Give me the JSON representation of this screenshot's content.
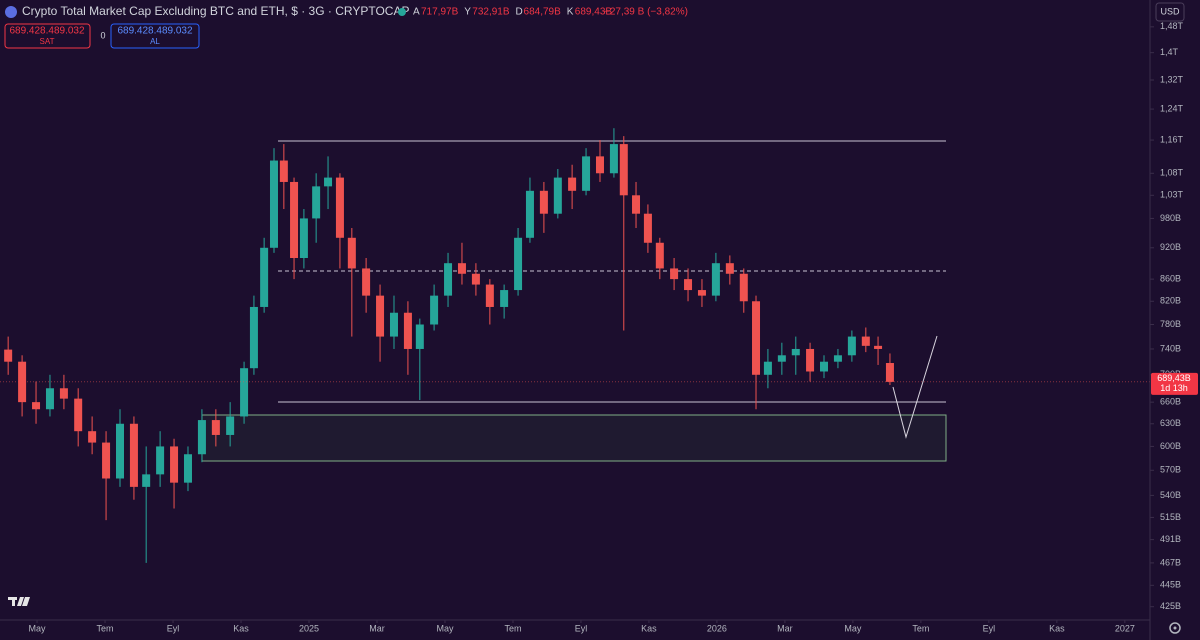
{
  "header": {
    "title": "Crypto Total Market Cap Excluding BTC and ETH, $ · 3G · CRYPTOCAP",
    "ohlc": [
      {
        "key": "A",
        "value": "717,97B"
      },
      {
        "key": "Y",
        "value": "732,91B"
      },
      {
        "key": "D",
        "value": "684,79B"
      },
      {
        "key": "K",
        "value": "689,43B"
      }
    ],
    "change": "−27,39 B (−3,82%)",
    "sell_price": "689.428.489.032",
    "sell_label": "SAT",
    "spread": "0",
    "buy_price": "689.428.489.032",
    "buy_label": "AL",
    "currency": "USD",
    "countdown": "1d 13h"
  },
  "chart_data": {
    "type": "candlestick",
    "log": true,
    "grid": false,
    "up_color": "#26a69a",
    "down_color": "#ef5350",
    "xlim": [
      -1.09,
      32.74
    ],
    "xticks": [
      {
        "value": 0,
        "label": "May"
      },
      {
        "value": 2,
        "label": "Tem"
      },
      {
        "value": 4,
        "label": "Eyl"
      },
      {
        "value": 6,
        "label": "Kas"
      },
      {
        "value": 8,
        "label": "2025"
      },
      {
        "value": 10,
        "label": "Mar"
      },
      {
        "value": 12,
        "label": "May"
      },
      {
        "value": 14,
        "label": "Tem"
      },
      {
        "value": 16,
        "label": "Eyl"
      },
      {
        "value": 18,
        "label": "Kas"
      },
      {
        "value": 20,
        "label": "2026"
      },
      {
        "value": 22,
        "label": "Mar"
      },
      {
        "value": 24,
        "label": "May"
      },
      {
        "value": 26,
        "label": "Tem"
      },
      {
        "value": 28,
        "label": "Eyl"
      },
      {
        "value": 30,
        "label": "Kas"
      },
      {
        "value": 32,
        "label": "2027"
      }
    ],
    "ylim": [
      413,
      1568
    ],
    "yticks": [
      {
        "value": 425,
        "label": "425B"
      },
      {
        "value": 445,
        "label": "445B"
      },
      {
        "value": 467,
        "label": "467B"
      },
      {
        "value": 491,
        "label": "491B"
      },
      {
        "value": 515,
        "label": "515B"
      },
      {
        "value": 540,
        "label": "540B"
      },
      {
        "value": 570,
        "label": "570B"
      },
      {
        "value": 600,
        "label": "600B"
      },
      {
        "value": 630,
        "label": "630B"
      },
      {
        "value": 660,
        "label": "660B"
      },
      {
        "value": 700,
        "label": "700B"
      },
      {
        "value": 740,
        "label": "740B"
      },
      {
        "value": 780,
        "label": "780B"
      },
      {
        "value": 820,
        "label": "820B"
      },
      {
        "value": 860,
        "label": "860B"
      },
      {
        "value": 920,
        "label": "920B"
      },
      {
        "value": 980,
        "label": "980B"
      },
      {
        "value": 1030,
        "label": "1,03T"
      },
      {
        "value": 1080,
        "label": "1,08T"
      },
      {
        "value": 1160,
        "label": "1,16T"
      },
      {
        "value": 1240,
        "label": "1,24T"
      },
      {
        "value": 1320,
        "label": "1,32T"
      },
      {
        "value": 1400,
        "label": "1,4T"
      },
      {
        "value": 1480,
        "label": "1,48T"
      }
    ],
    "price_line": {
      "value": 689.43,
      "label": "689,43B"
    },
    "candles": {
      "x": [
        -0.85,
        -0.44,
        -0.03,
        0.38,
        0.79,
        1.21,
        1.62,
        2.03,
        2.44,
        2.85,
        3.21,
        3.62,
        4.03,
        4.44,
        4.85,
        5.26,
        5.68,
        6.09,
        6.38,
        6.68,
        6.97,
        7.26,
        7.56,
        7.85,
        8.21,
        8.56,
        8.91,
        9.26,
        9.68,
        10.09,
        10.5,
        10.91,
        11.26,
        11.68,
        12.09,
        12.5,
        12.91,
        13.32,
        13.74,
        14.15,
        14.5,
        14.91,
        15.32,
        15.74,
        16.15,
        16.56,
        16.97,
        17.26,
        17.62,
        17.97,
        18.32,
        18.74,
        19.15,
        19.56,
        19.97,
        20.38,
        20.79,
        21.15,
        21.5,
        21.91,
        22.32,
        22.74,
        23.15,
        23.56,
        23.97,
        24.38,
        24.74,
        25.09
      ],
      "open": [
        739,
        720,
        660,
        650,
        680,
        665,
        620,
        605,
        560,
        630,
        550,
        565,
        600,
        555,
        590,
        635,
        615,
        640,
        710,
        810,
        920,
        1110,
        1060,
        900,
        980,
        1050,
        1070,
        940,
        880,
        830,
        760,
        800,
        740,
        780,
        830,
        890,
        870,
        850,
        810,
        840,
        940,
        1040,
        990,
        1070,
        1040,
        1120,
        1080,
        1150,
        1030,
        990,
        930,
        880,
        860,
        840,
        830,
        890,
        870,
        820,
        700,
        720,
        730,
        740,
        705,
        720,
        730,
        760,
        745,
        717.97
      ],
      "high": [
        760,
        730,
        690,
        700,
        700,
        680,
        640,
        620,
        650,
        640,
        600,
        620,
        610,
        600,
        650,
        650,
        660,
        720,
        830,
        940,
        1140,
        1150,
        1070,
        1000,
        1080,
        1120,
        1080,
        960,
        900,
        850,
        830,
        820,
        790,
        850,
        910,
        930,
        890,
        860,
        850,
        960,
        1070,
        1060,
        1090,
        1100,
        1140,
        1160,
        1190,
        1170,
        1060,
        1010,
        940,
        900,
        880,
        860,
        910,
        905,
        880,
        830,
        740,
        750,
        760,
        750,
        730,
        740,
        770,
        775,
        760,
        732.91
      ],
      "low": [
        700,
        640,
        630,
        640,
        650,
        600,
        590,
        512,
        550,
        535,
        467,
        550,
        525,
        545,
        580,
        600,
        600,
        630,
        700,
        800,
        910,
        1000,
        860,
        880,
        930,
        1000,
        880,
        760,
        800,
        720,
        740,
        700,
        663,
        770,
        810,
        850,
        830,
        780,
        790,
        830,
        930,
        950,
        980,
        1000,
        1030,
        1060,
        1070,
        770,
        960,
        910,
        860,
        840,
        820,
        810,
        820,
        850,
        800,
        650,
        680,
        700,
        700,
        690,
        695,
        710,
        720,
        735,
        715,
        684.79
      ],
      "close": [
        720,
        660,
        650,
        680,
        665,
        620,
        605,
        560,
        630,
        550,
        565,
        600,
        555,
        590,
        635,
        615,
        640,
        710,
        810,
        920,
        1110,
        1060,
        900,
        980,
        1050,
        1070,
        940,
        880,
        830,
        760,
        800,
        740,
        780,
        830,
        890,
        870,
        850,
        810,
        840,
        940,
        1040,
        990,
        1070,
        1040,
        1120,
        1080,
        1150,
        1030,
        990,
        930,
        880,
        860,
        840,
        830,
        890,
        870,
        820,
        700,
        720,
        730,
        740,
        705,
        720,
        730,
        760,
        745,
        740,
        689.43
      ]
    }
  }
}
